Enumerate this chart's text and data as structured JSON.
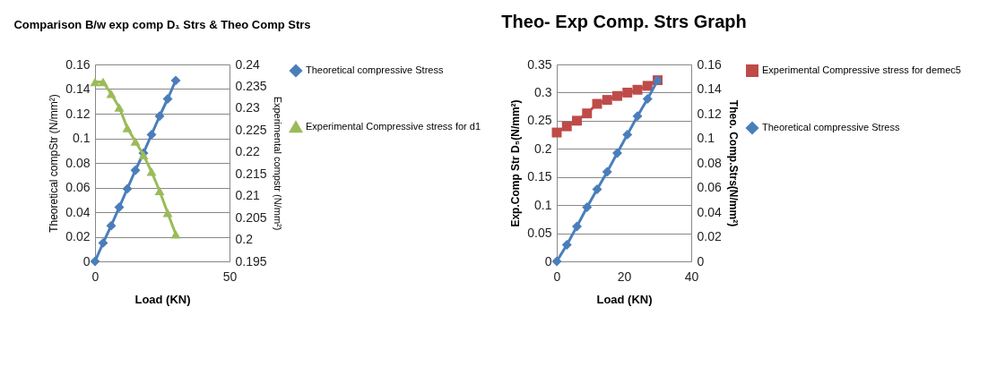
{
  "chart_data": [
    {
      "type": "line",
      "title": "Comparison B/w exp comp D₁ Strs & Theo Comp Strs",
      "xlabel": "Load (KN)",
      "ylabel": "Theoretical compStr (N/mm²)",
      "y2label": "Experimental compstr (N/mm²)",
      "x": [
        0,
        3,
        6,
        9,
        12,
        15,
        18,
        21,
        24,
        27,
        30
      ],
      "xlim": [
        0,
        50
      ],
      "xticks": [
        0,
        50
      ],
      "ylim": [
        0,
        0.16
      ],
      "yticks": [
        0,
        0.02,
        0.04,
        0.06,
        0.08,
        0.1,
        0.12,
        0.14,
        0.16
      ],
      "y2lim": [
        0.195,
        0.24
      ],
      "y2ticks": [
        0.195,
        0.2,
        0.205,
        0.21,
        0.215,
        0.22,
        0.225,
        0.23,
        0.235,
        0.24
      ],
      "grid": "y",
      "legend": "right",
      "line_style": "solid",
      "series": [
        {
          "name": "Theoretical compressive Stress",
          "color": "#4a7ebb",
          "marker": "diamond",
          "values": [
            0,
            0.015,
            0.029,
            0.044,
            0.059,
            0.074,
            0.088,
            0.103,
            0.118,
            0.132,
            0.147
          ]
        },
        {
          "name": "Experimental Compressive stress for d1",
          "color": "#9bbb59",
          "marker": "triangle",
          "axis": "y2",
          "values": [
            0.236,
            0.236,
            0.2333,
            0.2302,
            0.2255,
            0.2224,
            0.2193,
            0.2155,
            0.2111,
            0.2061,
            0.2012
          ]
        }
      ]
    },
    {
      "type": "line",
      "title": "Theo- Exp Comp. Strs Graph",
      "xlabel": "Load (KN)",
      "ylabel": "Exp.Comp Str  D₅(N/mm²)",
      "y2label": "Theo. Comp.Strs(N/mm²)",
      "x": [
        0,
        3,
        6,
        9,
        12,
        15,
        18,
        21,
        24,
        27,
        30
      ],
      "xlim": [
        0,
        40
      ],
      "xticks": [
        0,
        20,
        40
      ],
      "ylim": [
        0,
        0.35
      ],
      "yticks": [
        0,
        0.05,
        0.1,
        0.15,
        0.2,
        0.25,
        0.3,
        0.35
      ],
      "y2lim": [
        0,
        0.16
      ],
      "y2ticks": [
        0,
        0.02,
        0.04,
        0.06,
        0.08,
        0.1,
        0.12,
        0.14,
        0.16
      ],
      "grid": "y",
      "legend": "right",
      "line_style": "solid",
      "series": [
        {
          "name": "Experimental Compressive stress for demec5",
          "color": "#be4b48",
          "marker": "square",
          "values": [
            0.229,
            0.24,
            0.25,
            0.263,
            0.28,
            0.287,
            0.294,
            0.3,
            0.305,
            0.312,
            0.322
          ]
        },
        {
          "name": "Theoretical compressive Stress",
          "color": "#4a7ebb",
          "marker": "diamond",
          "axis": "y2",
          "values": [
            0,
            0.0135,
            0.0284,
            0.044,
            0.0586,
            0.0728,
            0.088,
            0.103,
            0.118,
            0.132,
            0.147
          ]
        }
      ]
    }
  ]
}
